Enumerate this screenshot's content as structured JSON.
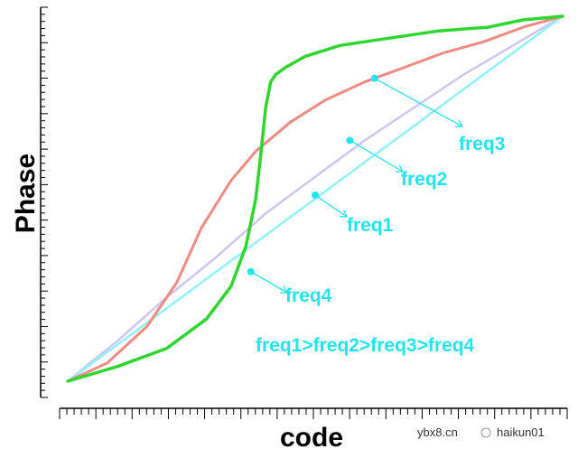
{
  "chart_data": {
    "type": "line",
    "xlabel": "code",
    "ylabel": "Phase",
    "xlim": [
      0,
      100
    ],
    "ylim": [
      0,
      100
    ],
    "series": [
      {
        "name": "freq1",
        "color": "#8ff2f6",
        "x": [
          0,
          10,
          20,
          30,
          40,
          50,
          60,
          70,
          80,
          90,
          100
        ],
        "y": [
          0,
          10,
          20,
          30,
          40,
          50,
          60,
          70,
          80,
          90,
          100
        ],
        "marker": {
          "x": 50,
          "y": 51
        }
      },
      {
        "name": "freq2",
        "color": "#ccc6f2",
        "x": [
          0,
          10,
          20,
          30,
          40,
          50,
          60,
          70,
          80,
          90,
          100
        ],
        "y": [
          0,
          11,
          23,
          34,
          46,
          56,
          66,
          75,
          84,
          92,
          100
        ],
        "marker": {
          "x": 57,
          "y": 66
        }
      },
      {
        "name": "freq3",
        "color": "#f08a82",
        "x": [
          0,
          8,
          16,
          22,
          27,
          33,
          38,
          45,
          52,
          60,
          68,
          76,
          84,
          92,
          100
        ],
        "y": [
          0,
          5,
          15,
          27,
          42,
          55,
          63,
          71,
          77,
          82,
          86,
          90,
          93,
          97,
          100
        ],
        "marker": {
          "x": 62,
          "y": 83
        }
      },
      {
        "name": "freq4",
        "color": "#2fd62f",
        "x": [
          0,
          10,
          20,
          28,
          33,
          36,
          38,
          39,
          40,
          41,
          42,
          44,
          48,
          55,
          65,
          75,
          85,
          92,
          100
        ],
        "y": [
          0,
          4,
          9,
          17,
          26,
          37,
          50,
          62,
          75,
          82,
          84,
          86,
          89,
          92,
          94,
          96,
          97,
          99,
          100
        ],
        "marker": {
          "x": 37,
          "y": 30
        }
      }
    ],
    "annotations": {
      "labels": [
        "freq1",
        "freq2",
        "freq3",
        "freq4"
      ],
      "relation": "freq1>freq2>freq3>freq4",
      "color": "#22e4f0"
    },
    "grid": false
  },
  "watermark": {
    "site": "ybx8.cn",
    "user": "haikun01"
  }
}
